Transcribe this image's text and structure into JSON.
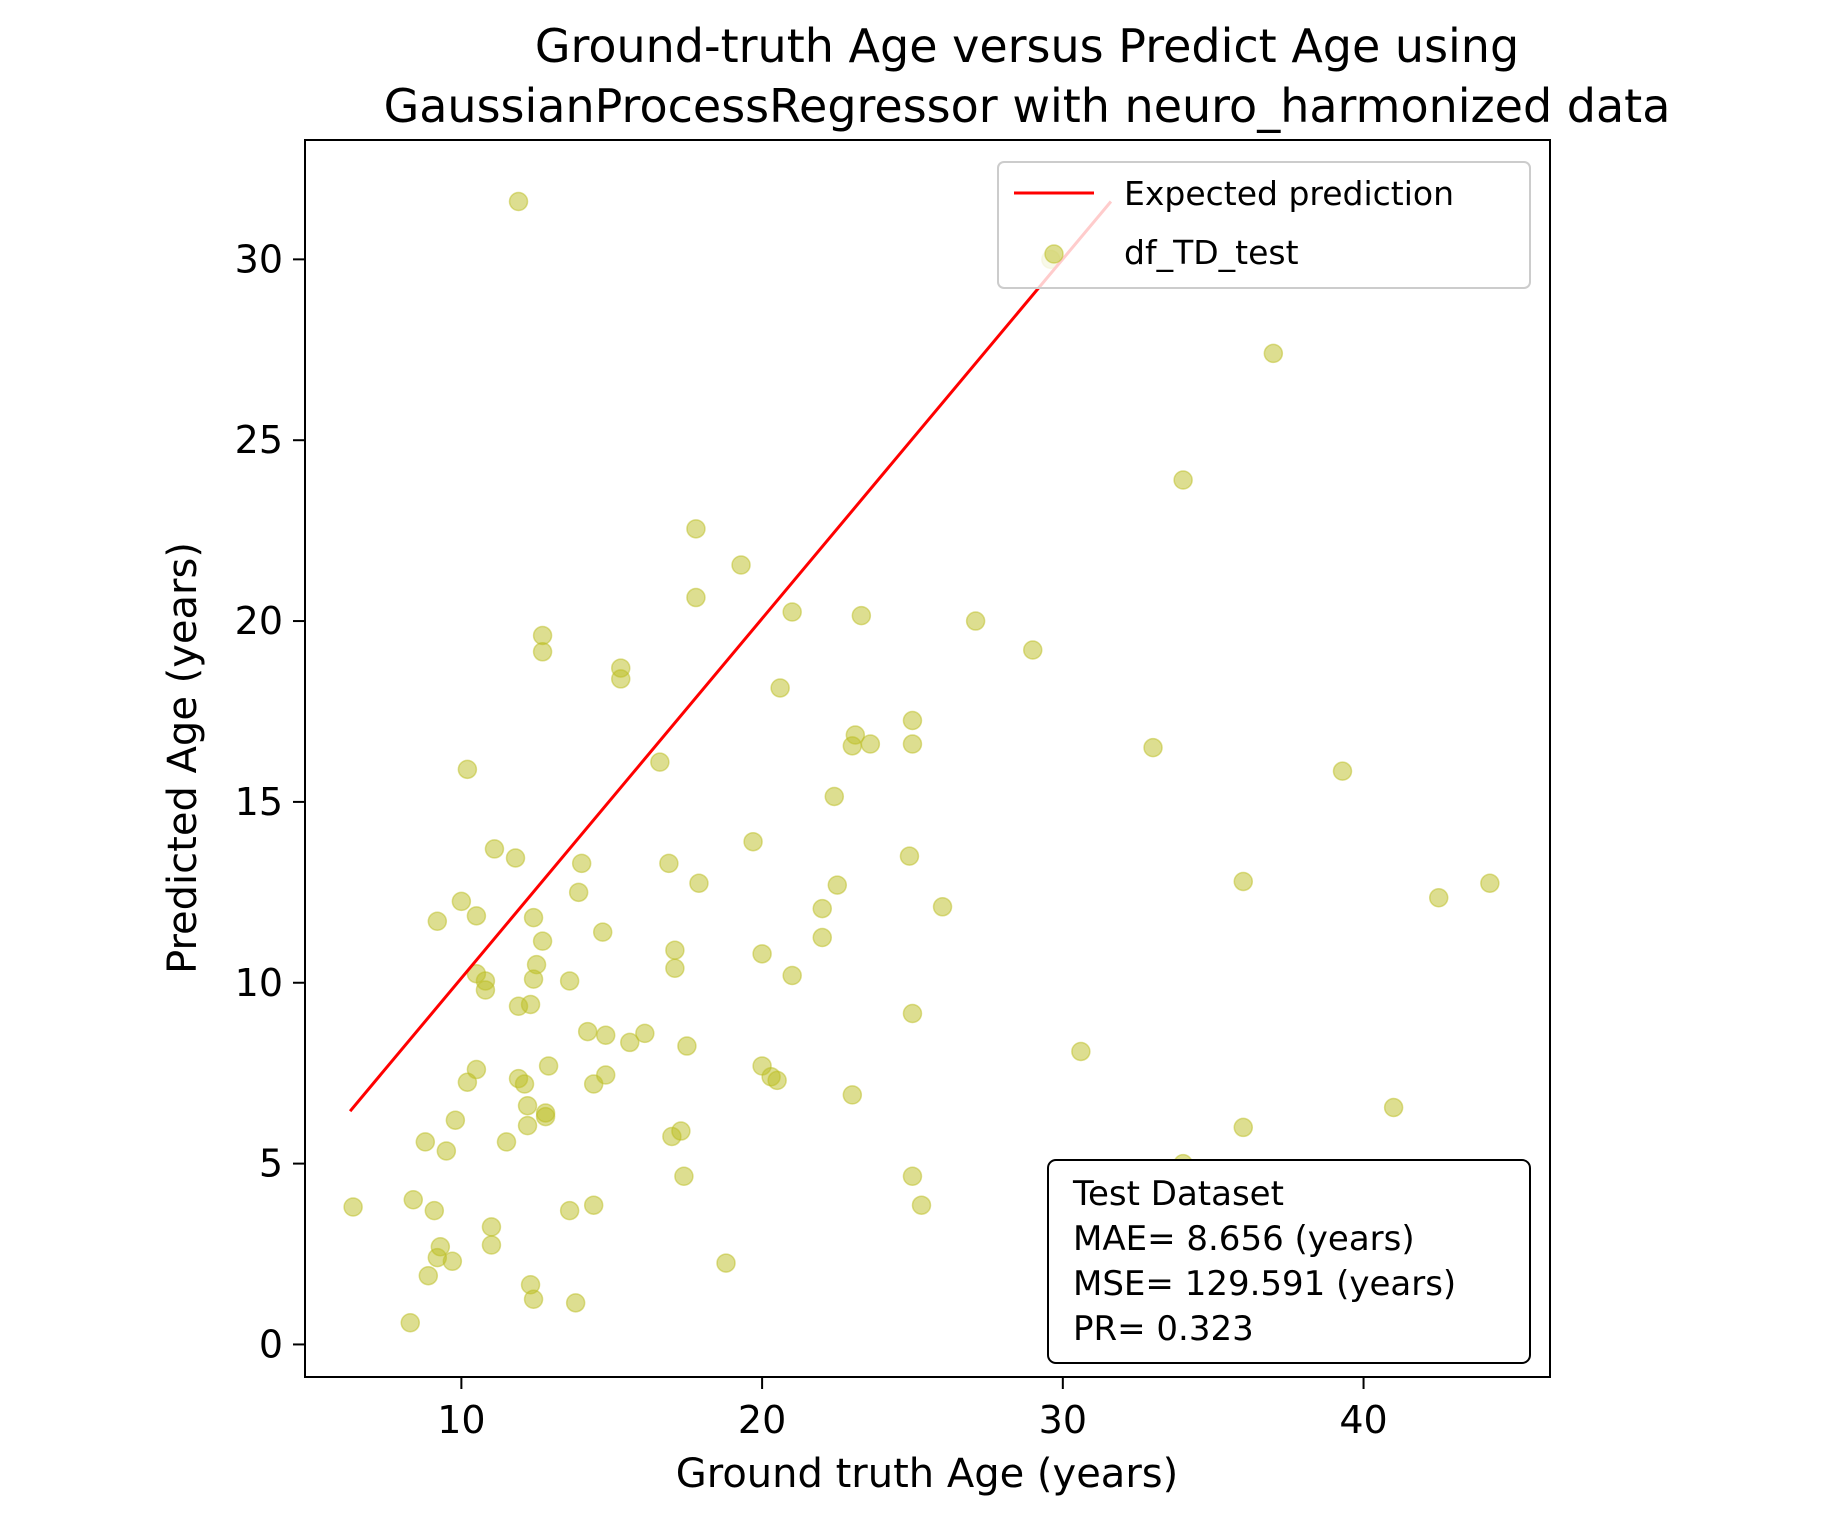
{
  "chart_data": {
    "type": "scatter",
    "title_lines": [
      "Ground-truth Age versus Predict Age using",
      "GaussianProcessRegressor  with neuro_harmonized data"
    ],
    "xlabel": "Ground truth Age (years)",
    "ylabel": "Predicted Age (years)",
    "xlim": [
      4.8,
      46.2
    ],
    "ylim": [
      -0.9,
      33.3
    ],
    "xticks": [
      10,
      20,
      30,
      40
    ],
    "yticks": [
      0,
      5,
      10,
      15,
      20,
      25,
      30
    ],
    "grid": false,
    "legend": {
      "placement": "top-right",
      "entries": [
        {
          "label": "Expected prediction",
          "kind": "line",
          "color": "#ff0000"
        },
        {
          "label": "df_TD_test",
          "kind": "marker",
          "color": "#bcbd22"
        }
      ]
    },
    "series": [
      {
        "name": "Expected prediction",
        "kind": "line",
        "color": "#ff0000",
        "x": [
          6.3,
          31.6
        ],
        "y": [
          6.45,
          31.6
        ]
      },
      {
        "name": "df_TD_test",
        "kind": "scatter",
        "color": "#bcbd22",
        "opacity": 0.5,
        "points": [
          [
            6.4,
            3.8
          ],
          [
            8.3,
            0.6
          ],
          [
            8.4,
            4.0
          ],
          [
            8.8,
            5.6
          ],
          [
            8.9,
            1.9
          ],
          [
            9.1,
            3.7
          ],
          [
            9.2,
            2.4
          ],
          [
            9.3,
            2.7
          ],
          [
            9.2,
            11.7
          ],
          [
            9.5,
            5.35
          ],
          [
            9.7,
            2.3
          ],
          [
            9.8,
            6.2
          ],
          [
            10.0,
            12.25
          ],
          [
            10.2,
            7.25
          ],
          [
            10.2,
            15.9
          ],
          [
            10.5,
            10.25
          ],
          [
            10.5,
            11.85
          ],
          [
            10.5,
            7.6
          ],
          [
            10.8,
            10.05
          ],
          [
            10.8,
            9.8
          ],
          [
            11.0,
            2.75
          ],
          [
            11.0,
            3.25
          ],
          [
            11.1,
            13.7
          ],
          [
            11.5,
            5.6
          ],
          [
            11.8,
            13.45
          ],
          [
            11.9,
            7.35
          ],
          [
            11.9,
            9.35
          ],
          [
            11.9,
            31.6
          ],
          [
            12.1,
            7.2
          ],
          [
            12.2,
            6.6
          ],
          [
            12.2,
            6.05
          ],
          [
            12.3,
            9.4
          ],
          [
            12.3,
            1.65
          ],
          [
            12.4,
            1.25
          ],
          [
            12.4,
            11.8
          ],
          [
            12.4,
            10.1
          ],
          [
            12.5,
            10.5
          ],
          [
            12.7,
            19.6
          ],
          [
            12.7,
            19.15
          ],
          [
            12.7,
            11.15
          ],
          [
            12.8,
            6.3
          ],
          [
            12.8,
            6.4
          ],
          [
            12.9,
            7.7
          ],
          [
            13.6,
            10.05
          ],
          [
            13.6,
            3.7
          ],
          [
            13.8,
            1.15
          ],
          [
            13.9,
            12.5
          ],
          [
            14.0,
            13.3
          ],
          [
            14.2,
            8.65
          ],
          [
            14.4,
            7.2
          ],
          [
            14.4,
            3.85
          ],
          [
            14.7,
            11.4
          ],
          [
            14.8,
            7.45
          ],
          [
            14.8,
            8.55
          ],
          [
            15.3,
            18.7
          ],
          [
            15.3,
            18.4
          ],
          [
            15.6,
            8.35
          ],
          [
            16.1,
            8.6
          ],
          [
            16.6,
            16.1
          ],
          [
            16.9,
            13.3
          ],
          [
            17.0,
            5.75
          ],
          [
            17.1,
            10.9
          ],
          [
            17.1,
            10.4
          ],
          [
            17.3,
            5.9
          ],
          [
            17.4,
            4.65
          ],
          [
            17.5,
            8.25
          ],
          [
            17.8,
            20.65
          ],
          [
            17.8,
            22.55
          ],
          [
            17.9,
            12.75
          ],
          [
            18.8,
            2.25
          ],
          [
            19.3,
            21.55
          ],
          [
            19.7,
            13.9
          ],
          [
            20.0,
            10.8
          ],
          [
            20.0,
            7.7
          ],
          [
            20.3,
            7.4
          ],
          [
            20.5,
            7.3
          ],
          [
            20.6,
            18.15
          ],
          [
            21.0,
            20.25
          ],
          [
            21.0,
            10.2
          ],
          [
            22.0,
            12.05
          ],
          [
            22.0,
            11.25
          ],
          [
            22.4,
            15.15
          ],
          [
            22.5,
            12.7
          ],
          [
            23.0,
            16.55
          ],
          [
            23.0,
            6.9
          ],
          [
            23.1,
            16.85
          ],
          [
            23.3,
            20.15
          ],
          [
            23.6,
            16.6
          ],
          [
            24.9,
            13.5
          ],
          [
            25.0,
            17.25
          ],
          [
            25.0,
            16.6
          ],
          [
            25.0,
            9.15
          ],
          [
            25.0,
            4.65
          ],
          [
            25.3,
            3.85
          ],
          [
            26.0,
            12.1
          ],
          [
            27.1,
            20.0
          ],
          [
            29.0,
            19.2
          ],
          [
            29.6,
            30.0
          ],
          [
            30.6,
            8.1
          ],
          [
            33.0,
            16.5
          ],
          [
            34.0,
            23.9
          ],
          [
            34.0,
            5.0
          ],
          [
            36.0,
            12.8
          ],
          [
            36.0,
            6.0
          ],
          [
            37.0,
            27.4
          ],
          [
            39.3,
            15.85
          ],
          [
            41.0,
            6.55
          ],
          [
            42.5,
            12.35
          ],
          [
            44.2,
            12.75
          ]
        ]
      }
    ],
    "annotation": {
      "placement": "bottom-right",
      "lines": [
        "Test Dataset",
        "MAE= 8.656 (years)",
        "MSE= 129.591 (years)",
        "PR= 0.323"
      ]
    }
  }
}
